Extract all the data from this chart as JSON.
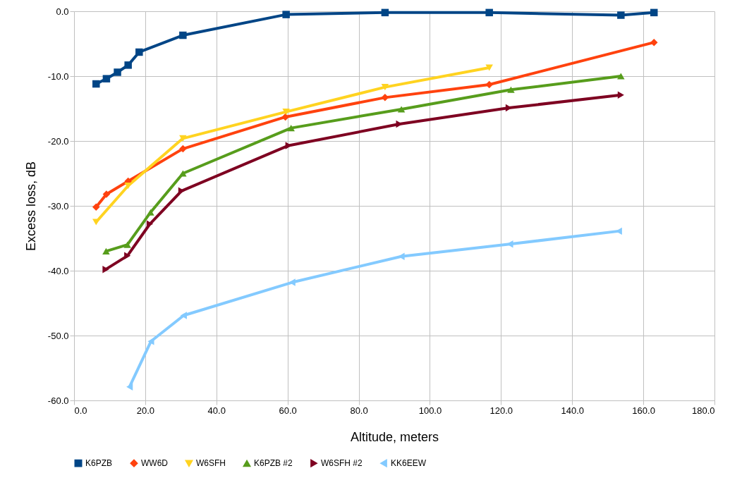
{
  "chart_data": {
    "type": "line",
    "xlabel": "Altitude, meters",
    "ylabel": "Excess loss, dB",
    "xlim": [
      0,
      180
    ],
    "ylim": [
      -60,
      0
    ],
    "xticks": [
      {
        "value": 0,
        "label": "0.0"
      },
      {
        "value": 20,
        "label": "20.0"
      },
      {
        "value": 40,
        "label": "40.0"
      },
      {
        "value": 60,
        "label": "60.0"
      },
      {
        "value": 80,
        "label": "80.0"
      },
      {
        "value": 100,
        "label": "100.0"
      },
      {
        "value": 120,
        "label": "120.0"
      },
      {
        "value": 140,
        "label": "140.0"
      },
      {
        "value": 160,
        "label": "160.0"
      },
      {
        "value": 180,
        "label": "180.0"
      }
    ],
    "yticks": [
      {
        "value": -60,
        "label": "-60.0"
      },
      {
        "value": -50,
        "label": "-50.0"
      },
      {
        "value": -40,
        "label": "-40.0"
      },
      {
        "value": -30,
        "label": "-30.0"
      },
      {
        "value": -20,
        "label": "-20.0"
      },
      {
        "value": -10,
        "label": "-10.0"
      },
      {
        "value": 0,
        "label": "0.0"
      }
    ],
    "grid": true,
    "legend": "bottom",
    "line_style": "solid",
    "series": [
      {
        "name": "K6PZB",
        "color": "#004586",
        "marker": "square",
        "x": [
          6.2,
          9.1,
          12.2,
          15.2,
          18.3,
          30.6,
          59.6,
          87.4,
          116.7,
          153.7,
          163
        ],
        "values": [
          -11.2,
          -10.4,
          -9.4,
          -8.3,
          -6.3,
          -3.7,
          -0.5,
          -0.2,
          -0.2,
          -0.6,
          -0.2
        ]
      },
      {
        "name": "WW6D",
        "color": "#ff420e",
        "marker": "diamond",
        "x": [
          6.2,
          9.1,
          15.2,
          30.6,
          59.4,
          87.4,
          116.7,
          163
        ],
        "values": [
          -30.2,
          -28.2,
          -26.2,
          -21.2,
          -16.3,
          -13.3,
          -11.3,
          -4.8
        ]
      },
      {
        "name": "W6SFH",
        "color": "#ffd320",
        "marker": "triangle-down",
        "x": [
          6.2,
          15.2,
          30.6,
          59.6,
          87.4,
          116.7
        ],
        "values": [
          -32.5,
          -26.9,
          -19.6,
          -15.5,
          -11.7,
          -8.7
        ]
      },
      {
        "name": "K6PZB #2",
        "color": "#579d1c",
        "marker": "triangle-up",
        "x": [
          9.0,
          15.0,
          21.5,
          30.6,
          61.0,
          92.0,
          122.8,
          153.7
        ],
        "values": [
          -37.0,
          -36.0,
          -31.0,
          -25.0,
          -18.0,
          -15.1,
          -12.1,
          -10.0
        ]
      },
      {
        "name": "W6SFH #2",
        "color": "#7e0021",
        "marker": "triangle-right",
        "x": [
          8.9,
          15.0,
          21.3,
          30.2,
          60.3,
          91.4,
          122.2,
          153.7
        ],
        "values": [
          -39.8,
          -37.7,
          -32.8,
          -27.7,
          -20.7,
          -17.4,
          -14.9,
          -12.9
        ]
      },
      {
        "name": "KK6EEW",
        "color": "#83caff",
        "marker": "triangle-left",
        "x": [
          15.6,
          21.6,
          30.8,
          61.3,
          92.0,
          122.5,
          153.1
        ],
        "values": [
          -57.9,
          -50.9,
          -46.9,
          -41.8,
          -37.8,
          -35.9,
          -33.9
        ]
      }
    ]
  }
}
